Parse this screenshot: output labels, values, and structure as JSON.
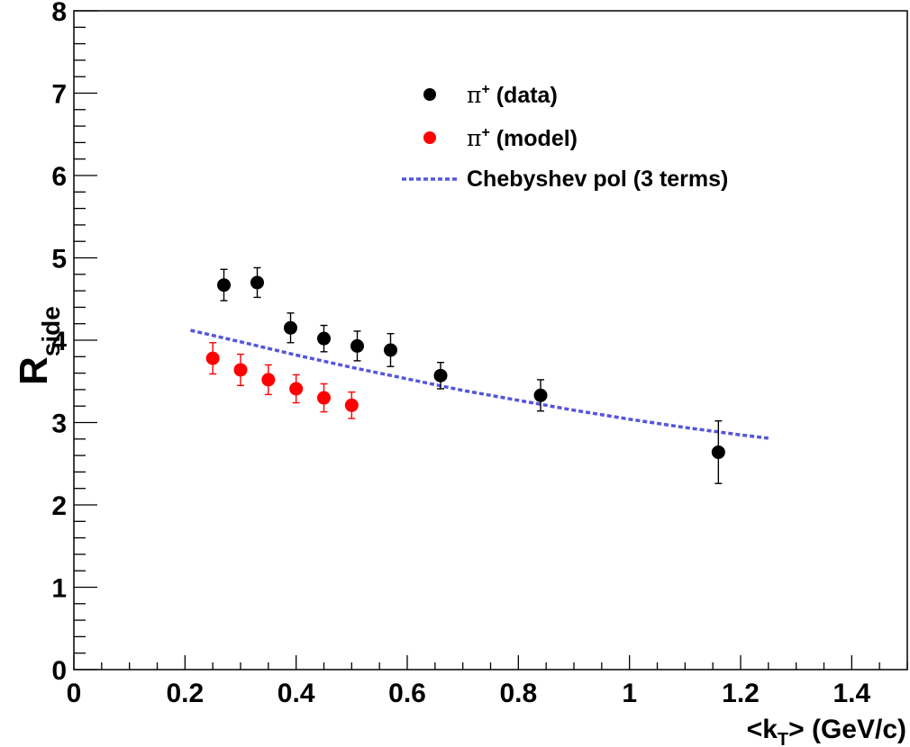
{
  "chart_data": {
    "type": "scatter",
    "xlabel": {
      "main": "<k",
      "sub": "T",
      "tail": "> (GeV/c)"
    },
    "ylabel": {
      "main": "R",
      "sub": "side"
    },
    "xlim": [
      0,
      1.5
    ],
    "ylim": [
      0,
      8
    ],
    "xticks": [
      0,
      0.2,
      0.4,
      0.6,
      0.8,
      1,
      1.2,
      1.4
    ],
    "xtick_labels": [
      "0",
      "0.2",
      "0.4",
      "0.6",
      "0.8",
      "1",
      "1.2",
      "1.4"
    ],
    "yticks": [
      0,
      1,
      2,
      3,
      4,
      5,
      6,
      7,
      8
    ],
    "ytick_labels": [
      "0",
      "1",
      "2",
      "3",
      "4",
      "5",
      "6",
      "7",
      "8"
    ],
    "legend_position": "top-center",
    "series": [
      {
        "name": "π+ (data)",
        "legend": {
          "symbol": "π",
          "sup": "+",
          "rest": " (data)"
        },
        "color": "#000000",
        "marker": "circle",
        "points": [
          {
            "x": 0.27,
            "y": 4.67,
            "err": 0.19
          },
          {
            "x": 0.33,
            "y": 4.7,
            "err": 0.18
          },
          {
            "x": 0.39,
            "y": 4.15,
            "err": 0.18
          },
          {
            "x": 0.45,
            "y": 4.02,
            "err": 0.16
          },
          {
            "x": 0.51,
            "y": 3.93,
            "err": 0.18
          },
          {
            "x": 0.57,
            "y": 3.88,
            "err": 0.2
          },
          {
            "x": 0.66,
            "y": 3.57,
            "err": 0.16
          },
          {
            "x": 0.84,
            "y": 3.33,
            "err": 0.19
          },
          {
            "x": 1.16,
            "y": 2.64,
            "err": 0.38
          }
        ]
      },
      {
        "name": "π+ (model)",
        "legend": {
          "symbol": "π",
          "sup": "+",
          "rest": " (model)"
        },
        "color": "#ff0000",
        "marker": "circle",
        "points": [
          {
            "x": 0.25,
            "y": 3.78,
            "err": 0.19
          },
          {
            "x": 0.3,
            "y": 3.64,
            "err": 0.19
          },
          {
            "x": 0.35,
            "y": 3.52,
            "err": 0.18
          },
          {
            "x": 0.4,
            "y": 3.41,
            "err": 0.17
          },
          {
            "x": 0.45,
            "y": 3.3,
            "err": 0.17
          },
          {
            "x": 0.5,
            "y": 3.21,
            "err": 0.16
          }
        ]
      },
      {
        "name": "Chebyshev pol (3 terms)",
        "legend": {
          "text": "Chebyshev pol (3 terms)"
        },
        "color": "#5555dd",
        "style": "dotted-line",
        "x": [
          0.21,
          0.3,
          0.4,
          0.5,
          0.6,
          0.7,
          0.8,
          0.9,
          1.0,
          1.1,
          1.2,
          1.25
        ],
        "y": [
          4.12,
          3.98,
          3.82,
          3.67,
          3.53,
          3.39,
          3.27,
          3.15,
          3.04,
          2.94,
          2.85,
          2.81
        ]
      }
    ]
  }
}
